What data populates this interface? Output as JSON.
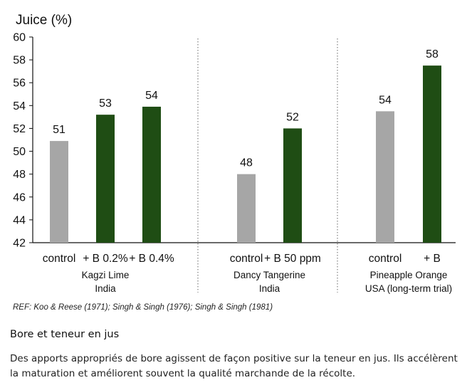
{
  "chart_data": {
    "type": "bar",
    "ylabel": "Juice (%)",
    "ylim": [
      42,
      60
    ],
    "yticks": [
      42,
      44,
      46,
      48,
      50,
      52,
      54,
      56,
      58,
      60
    ],
    "grid": false,
    "colors": {
      "control": "#a6a6a6",
      "boron": "#1f4d14"
    },
    "groups": [
      {
        "name": "Kagzi Lime",
        "location": "India",
        "bars": [
          {
            "category": "control",
            "value": 50.9,
            "label": "51",
            "kind": "control"
          },
          {
            "category": "+ B 0.2%",
            "value": 53.2,
            "label": "53",
            "kind": "boron"
          },
          {
            "category": "+ B 0.4%",
            "value": 53.9,
            "label": "54",
            "kind": "boron"
          }
        ]
      },
      {
        "name": "Dancy Tangerine",
        "location": "India",
        "bars": [
          {
            "category": "control",
            "value": 48.0,
            "label": "48",
            "kind": "control"
          },
          {
            "category": "+ B 50 ppm",
            "value": 52.0,
            "label": "52",
            "kind": "boron"
          }
        ]
      },
      {
        "name": "Pineapple Orange",
        "location": "USA (long-term trial)",
        "bars": [
          {
            "category": "control",
            "value": 53.5,
            "label": "54",
            "kind": "control"
          },
          {
            "category": "+ B",
            "value": 57.5,
            "label": "58",
            "kind": "boron"
          }
        ]
      }
    ]
  },
  "reference": "REF: Koo & Reese (1971); Singh & Singh (1976); Singh & Singh (1981)",
  "caption": {
    "title": "Bore et teneur en jus",
    "body": "Des apports appropriés de bore agissent de façon positive sur la teneur en jus. Ils accélèrent la maturation et améliorent souvent la qualité marchande de la récolte."
  }
}
